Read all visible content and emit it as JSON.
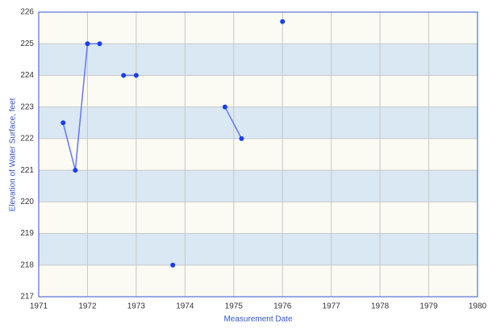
{
  "chart_data": {
    "type": "line",
    "x_label": "Measurement Date",
    "y_label": "Elevation of Water Surface, feet",
    "series": [
      {
        "color": "#1a3ef0",
        "line_color": "#6677ee",
        "x": [
          1971.5,
          1971.75,
          1972.0,
          1972.25,
          null,
          1972.74,
          1973.0,
          null,
          1973.75,
          null,
          1974.82,
          1975.16,
          null,
          1976.0
        ],
        "values": [
          222.5,
          221,
          225,
          225,
          null,
          224,
          224,
          null,
          218,
          null,
          223,
          222,
          null,
          225.7
        ]
      }
    ],
    "xlim": [
      1971,
      1980
    ],
    "xticks": [
      1971,
      1972,
      1973,
      1974,
      1975,
      1976,
      1977,
      1978,
      1979,
      1980
    ],
    "ylim": [
      217,
      226
    ],
    "yticks": [
      217,
      218,
      219,
      220,
      221,
      222,
      223,
      224,
      225,
      226
    ],
    "band_colors": [
      "#fbfaf3",
      "#d9e8f3"
    ],
    "grid": true
  }
}
